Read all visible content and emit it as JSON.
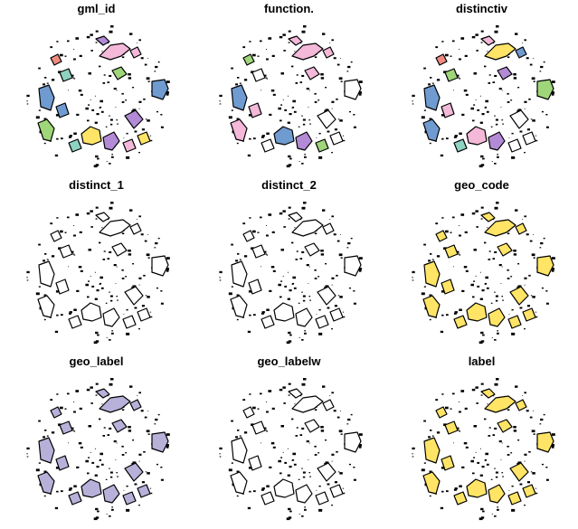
{
  "figure": {
    "panels": [
      {
        "title": "gml_id",
        "fill": "palette"
      },
      {
        "title": "function.",
        "fill": "palette2"
      },
      {
        "title": "distinctiv",
        "fill": "palette3"
      },
      {
        "title": "distinct_1",
        "fill": "white"
      },
      {
        "title": "distinct_2",
        "fill": "white"
      },
      {
        "title": "geo_code",
        "fill": "yellow"
      },
      {
        "title": "geo_label",
        "fill": "lavender"
      },
      {
        "title": "geo_labelw",
        "fill": "white"
      },
      {
        "title": "label",
        "fill": "yellow"
      }
    ],
    "colors": {
      "outline": "#000000",
      "pink": "#f4b8d8",
      "blue": "#6f9bd1",
      "green": "#9fd67a",
      "purple": "#b28ad6",
      "lavender": "#b7b1da",
      "yellow": "#ffe466",
      "teal": "#8fd3c2",
      "salmon": "#f08a80",
      "white": "#ffffff"
    }
  }
}
